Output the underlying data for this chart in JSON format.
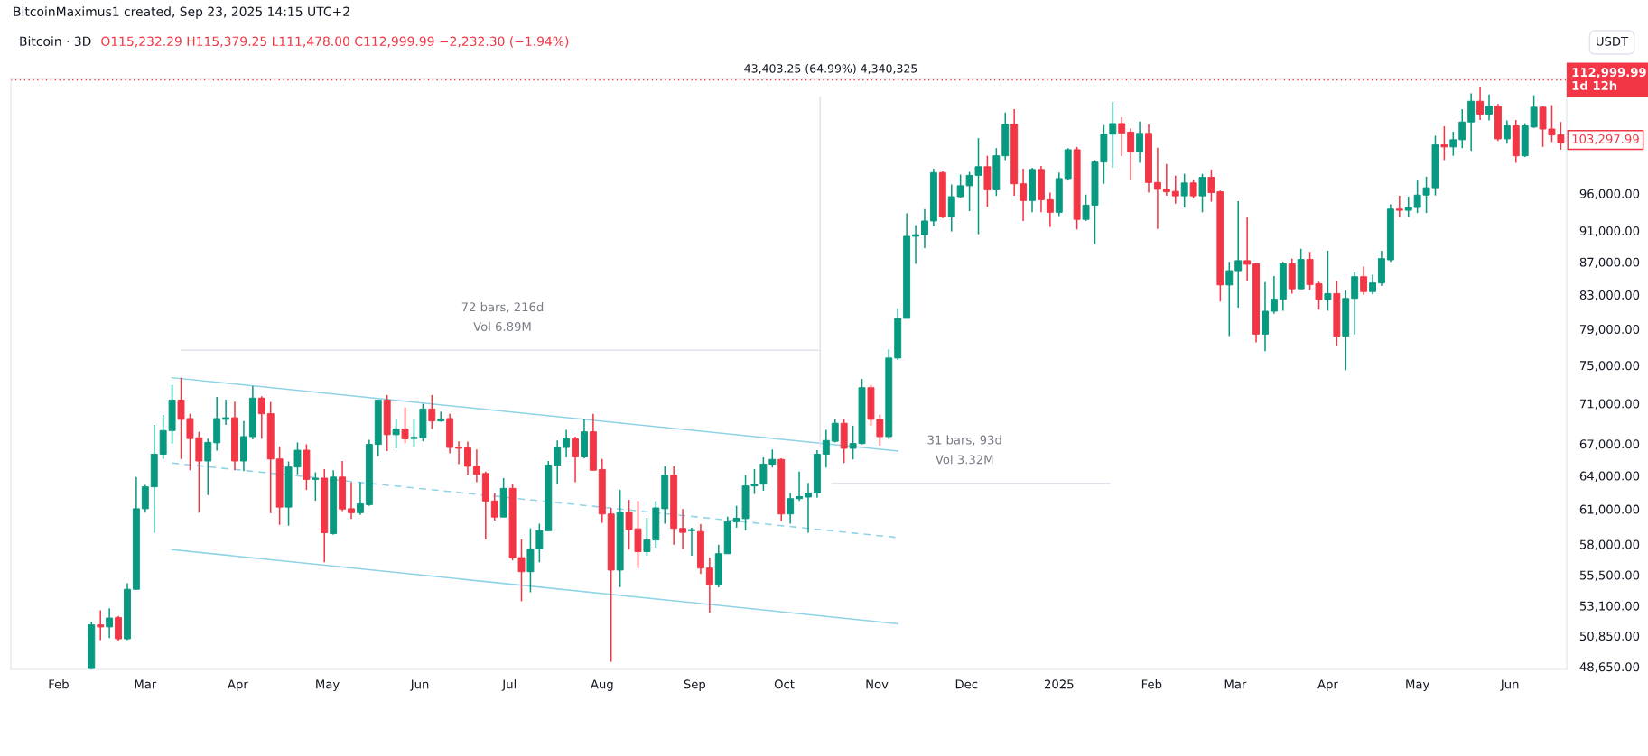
{
  "chart_data": {
    "type": "candlestick",
    "title": "Bitcoin · 3D",
    "subtitle": "O115,232.29 H115,379.25 L111,478.00 C112,999.99 −2,232.30 (−1.94%)",
    "ylabel": "USDT",
    "log": true,
    "x": [
      "2024-02-12",
      "2024-02-15",
      "2024-02-18",
      "2024-02-21",
      "2024-02-24",
      "2024-02-27",
      "2024-03-01",
      "2024-03-04",
      "2024-03-07",
      "2024-03-10",
      "2024-03-13",
      "2024-03-16",
      "2024-03-19",
      "2024-03-22",
      "2024-03-25",
      "2024-03-28",
      "2024-03-31",
      "2024-04-03",
      "2024-04-06",
      "2024-04-09",
      "2024-04-12",
      "2024-04-15",
      "2024-04-18",
      "2024-04-21",
      "2024-04-24",
      "2024-04-27",
      "2024-04-30",
      "2024-05-03",
      "2024-05-06",
      "2024-05-09",
      "2024-05-12",
      "2024-05-15",
      "2024-05-18",
      "2024-05-21",
      "2024-05-24",
      "2024-05-27",
      "2024-05-30",
      "2024-06-02",
      "2024-06-05",
      "2024-06-08",
      "2024-06-11",
      "2024-06-14",
      "2024-06-17",
      "2024-06-20",
      "2024-06-23",
      "2024-06-26",
      "2024-06-29",
      "2024-07-02",
      "2024-07-05",
      "2024-07-08",
      "2024-07-11",
      "2024-07-14",
      "2024-07-17",
      "2024-07-20",
      "2024-07-23",
      "2024-07-26",
      "2024-07-29",
      "2024-08-01",
      "2024-08-04",
      "2024-08-07",
      "2024-08-10",
      "2024-08-13",
      "2024-08-16",
      "2024-08-19",
      "2024-08-22",
      "2024-08-25",
      "2024-08-28",
      "2024-08-31",
      "2024-09-03",
      "2024-09-06",
      "2024-09-09",
      "2024-09-12",
      "2024-09-15",
      "2024-09-18",
      "2024-09-21",
      "2024-09-24",
      "2024-09-27",
      "2024-09-30",
      "2024-10-03",
      "2024-10-06",
      "2024-10-09",
      "2024-10-12",
      "2024-10-15",
      "2024-10-18",
      "2024-10-21",
      "2024-10-24",
      "2024-10-27",
      "2024-10-30",
      "2024-11-02",
      "2024-11-05",
      "2024-11-08",
      "2024-11-11",
      "2024-11-14",
      "2024-11-17",
      "2024-11-20",
      "2024-11-23",
      "2024-11-26",
      "2024-11-29",
      "2024-12-02",
      "2024-12-05",
      "2024-12-08",
      "2024-12-11",
      "2024-12-14",
      "2024-12-17",
      "2024-12-20",
      "2024-12-23",
      "2024-12-26",
      "2024-12-29",
      "2025-01-01",
      "2025-01-04",
      "2025-01-07",
      "2025-01-10",
      "2025-01-13",
      "2025-01-16",
      "2025-01-19",
      "2025-01-22",
      "2025-01-25",
      "2025-01-28",
      "2025-01-31",
      "2025-02-03",
      "2025-02-06",
      "2025-02-09",
      "2025-02-12",
      "2025-02-15",
      "2025-02-18",
      "2025-02-21",
      "2025-02-24",
      "2025-02-27",
      "2025-03-02",
      "2025-03-05",
      "2025-03-08",
      "2025-03-11",
      "2025-03-14",
      "2025-03-17",
      "2025-03-20",
      "2025-03-23",
      "2025-03-26",
      "2025-03-29",
      "2025-04-01",
      "2025-04-04",
      "2025-04-07",
      "2025-04-10",
      "2025-04-13",
      "2025-04-16",
      "2025-04-19",
      "2025-04-22",
      "2025-04-25",
      "2025-04-28",
      "2025-05-01",
      "2025-05-04",
      "2025-05-07",
      "2025-05-10",
      "2025-05-13",
      "2025-05-16",
      "2025-05-19",
      "2025-05-22",
      "2025-05-25",
      "2025-05-28",
      "2025-05-31",
      "2025-06-03",
      "2025-06-06",
      "2025-06-09",
      "2025-06-12",
      "2025-06-15",
      "2025-06-18"
    ],
    "ohlc": [
      [
        48520,
        51900,
        48480,
        51660
      ],
      [
        51660,
        52760,
        50550,
        51510
      ],
      [
        51510,
        52910,
        50690,
        52170
      ],
      [
        52200,
        52320,
        50490,
        50640
      ],
      [
        50640,
        54840,
        50550,
        54370
      ],
      [
        54370,
        63880,
        54340,
        61040
      ],
      [
        61040,
        63170,
        60690,
        62990
      ],
      [
        62990,
        68850,
        58970,
        66010
      ],
      [
        66010,
        69840,
        65560,
        68290
      ],
      [
        68290,
        72920,
        67030,
        71350
      ],
      [
        71350,
        73680,
        65560,
        69400
      ],
      [
        69480,
        69960,
        64510,
        67510
      ],
      [
        67590,
        68170,
        60690,
        65370
      ],
      [
        65370,
        67510,
        62250,
        67140
      ],
      [
        67100,
        71670,
        66350,
        69480
      ],
      [
        69400,
        71390,
        68850,
        69560
      ],
      [
        69560,
        71190,
        64510,
        65370
      ],
      [
        65370,
        69240,
        64430,
        67700
      ],
      [
        67700,
        72800,
        67440,
        71550
      ],
      [
        71550,
        71750,
        67510,
        69960
      ],
      [
        69960,
        71150,
        60650,
        65560
      ],
      [
        65560,
        66760,
        59640,
        61180
      ],
      [
        61180,
        65330,
        59570,
        64810
      ],
      [
        64810,
        67140,
        64130,
        66390
      ],
      [
        66390,
        66950,
        62710,
        63670
      ],
      [
        63670,
        64320,
        61750,
        63780
      ],
      [
        63780,
        64620,
        56520,
        58970
      ],
      [
        58900,
        64510,
        58800,
        63880
      ],
      [
        63880,
        65370,
        60830,
        61010
      ],
      [
        61040,
        63420,
        60140,
        60690
      ],
      [
        60690,
        63420,
        60510,
        61470
      ],
      [
        61400,
        67400,
        61290,
        66950
      ],
      [
        66950,
        71350,
        65820,
        71350
      ],
      [
        71350,
        71870,
        66310,
        67890
      ],
      [
        67890,
        69480,
        66570,
        68450
      ],
      [
        68450,
        70600,
        67060,
        67480
      ],
      [
        67510,
        69480,
        66680,
        67630
      ],
      [
        67590,
        70960,
        67250,
        70440
      ],
      [
        70440,
        71870,
        68450,
        69240
      ],
      [
        69240,
        70160,
        69160,
        69440
      ],
      [
        69480,
        69960,
        66090,
        66650
      ],
      [
        66690,
        67250,
        65070,
        66570
      ],
      [
        66610,
        67210,
        64060,
        64880
      ],
      [
        64880,
        66460,
        63420,
        64130
      ],
      [
        64210,
        64390,
        58400,
        61720
      ],
      [
        61720,
        62430,
        60010,
        60310
      ],
      [
        60310,
        63780,
        60310,
        62850
      ],
      [
        62850,
        63240,
        56680,
        56900
      ],
      [
        56900,
        58400,
        53450,
        55760
      ],
      [
        55760,
        59340,
        54140,
        57620
      ],
      [
        57620,
        59740,
        56520,
        59140
      ],
      [
        59140,
        65370,
        59140,
        64990
      ],
      [
        64990,
        67330,
        63240,
        66650
      ],
      [
        66650,
        68370,
        65710,
        67480
      ],
      [
        67480,
        67700,
        63420,
        65750
      ],
      [
        65750,
        69400,
        65630,
        68170
      ],
      [
        68170,
        69960,
        64510,
        64510
      ],
      [
        64580,
        65560,
        59810,
        60580
      ],
      [
        60580,
        61110,
        48990,
        55890
      ],
      [
        55890,
        62710,
        54530,
        60760
      ],
      [
        60760,
        61820,
        57560,
        59240
      ],
      [
        59300,
        61720,
        56050,
        57390
      ],
      [
        57390,
        60240,
        57060,
        58360
      ],
      [
        58360,
        61720,
        57720,
        61110
      ],
      [
        61040,
        64880,
        59740,
        64060
      ],
      [
        64060,
        64880,
        57960,
        59340
      ],
      [
        59340,
        61010,
        57620,
        59000
      ],
      [
        59140,
        59400,
        57060,
        59240
      ],
      [
        59070,
        59710,
        55570,
        56050
      ],
      [
        56050,
        56900,
        52560,
        54750
      ],
      [
        54750,
        57960,
        54530,
        57220
      ],
      [
        57220,
        60350,
        57220,
        59910
      ],
      [
        59910,
        61290,
        59400,
        60210
      ],
      [
        60180,
        64060,
        59170,
        63070
      ],
      [
        63070,
        64620,
        62350,
        63240
      ],
      [
        63240,
        65710,
        62640,
        65070
      ],
      [
        65070,
        66460,
        64770,
        65520
      ],
      [
        65520,
        65630,
        59980,
        60580
      ],
      [
        60580,
        62430,
        59740,
        61930
      ],
      [
        61930,
        64390,
        61720,
        62110
      ],
      [
        62070,
        63350,
        58970,
        62430
      ],
      [
        62430,
        66390,
        62000,
        66010
      ],
      [
        66010,
        68370,
        64770,
        67330
      ],
      [
        67250,
        69400,
        67140,
        69010
      ],
      [
        69010,
        69400,
        65180,
        66570
      ],
      [
        66570,
        68770,
        65520,
        67030
      ],
      [
        67030,
        73550,
        66950,
        72630
      ],
      [
        72630,
        72920,
        68770,
        69400
      ],
      [
        69400,
        69880,
        66840,
        67700
      ],
      [
        67700,
        76750,
        67440,
        75790
      ],
      [
        75790,
        81390,
        75570,
        80230
      ],
      [
        80230,
        93290,
        80230,
        90270
      ],
      [
        90270,
        91750,
        86770,
        90480
      ],
      [
        90480,
        93870,
        88770,
        92280
      ],
      [
        92280,
        99480,
        91590,
        98920
      ],
      [
        98920,
        99090,
        92650,
        92810
      ],
      [
        92810,
        97240,
        90900,
        95560
      ],
      [
        95560,
        98640,
        95400,
        97070
      ],
      [
        97070,
        99030,
        93600,
        98530
      ],
      [
        98530,
        103950,
        90540,
        99760
      ],
      [
        99760,
        101340,
        94180,
        96510
      ],
      [
        96510,
        102460,
        95670,
        101340
      ],
      [
        101340,
        107840,
        100710,
        106020
      ],
      [
        106020,
        108350,
        95670,
        97350
      ],
      [
        97350,
        99480,
        92280,
        95030
      ],
      [
        95030,
        99590,
        93440,
        99370
      ],
      [
        99370,
        99870,
        93440,
        95140
      ],
      [
        95140,
        96120,
        91490,
        93440
      ],
      [
        93440,
        98920,
        92920,
        98080
      ],
      [
        98080,
        102460,
        97800,
        102230
      ],
      [
        102230,
        102640,
        91170,
        92490
      ],
      [
        92490,
        95840,
        92280,
        94400
      ],
      [
        94400,
        100710,
        89270,
        100430
      ],
      [
        100430,
        105900,
        97350,
        104540
      ],
      [
        104540,
        109480,
        99590,
        106140
      ],
      [
        106140,
        107090,
        101280,
        104720
      ],
      [
        104840,
        105430,
        97800,
        101930
      ],
      [
        101930,
        106440,
        100320,
        104660
      ],
      [
        104660,
        106020,
        96120,
        97520
      ],
      [
        97520,
        102520,
        91220,
        96570
      ],
      [
        96570,
        100150,
        95670,
        96230
      ],
      [
        96290,
        98470,
        94610,
        95670
      ],
      [
        95670,
        98750,
        94080,
        97460
      ],
      [
        97460,
        97910,
        95300,
        95670
      ],
      [
        95670,
        98750,
        93440,
        98250
      ],
      [
        98250,
        99370,
        94870,
        96120
      ],
      [
        96230,
        96400,
        82200,
        84180
      ],
      [
        84180,
        87020,
        78220,
        85920
      ],
      [
        85920,
        94930,
        81490,
        87170
      ],
      [
        87170,
        92810,
        84660,
        86720
      ],
      [
        86770,
        86870,
        77510,
        78440
      ],
      [
        78440,
        84510,
        76530,
        81060
      ],
      [
        81060,
        85270,
        80780,
        82480
      ],
      [
        82480,
        87020,
        81110,
        86770
      ],
      [
        86770,
        87420,
        83140,
        83710
      ],
      [
        83710,
        88670,
        83710,
        87320
      ],
      [
        87320,
        88270,
        83570,
        84230
      ],
      [
        84320,
        84560,
        81250,
        82430
      ],
      [
        82430,
        88420,
        81110,
        83140
      ],
      [
        83140,
        84660,
        77110,
        78220
      ],
      [
        78220,
        83520,
        74480,
        82570
      ],
      [
        82570,
        85770,
        78400,
        85180
      ],
      [
        85180,
        86420,
        83000,
        83380
      ],
      [
        83380,
        85420,
        83050,
        84420
      ],
      [
        84420,
        88420,
        84090,
        87420
      ],
      [
        87270,
        94500,
        87020,
        93870
      ],
      [
        93870,
        95670,
        92810,
        93710
      ],
      [
        93710,
        95560,
        92810,
        94080
      ],
      [
        94080,
        97800,
        93340,
        95780
      ],
      [
        95780,
        98360,
        93340,
        96790
      ],
      [
        96790,
        104300,
        95730,
        102940
      ],
      [
        102940,
        105730,
        100710,
        102640
      ],
      [
        102640,
        104900,
        101340,
        103710
      ],
      [
        103710,
        108350,
        102460,
        106380
      ],
      [
        106380,
        110860,
        102050,
        109600
      ],
      [
        109600,
        111930,
        106670,
        107590
      ],
      [
        107590,
        110670,
        106620,
        108850
      ],
      [
        108850,
        109160,
        103530,
        103830
      ],
      [
        103830,
        106620,
        103120,
        105790
      ],
      [
        105790,
        106670,
        100320,
        101340
      ],
      [
        101340,
        106200,
        101160,
        105790
      ],
      [
        105610,
        110540,
        105490,
        108660
      ],
      [
        108660,
        108790,
        102640,
        105310
      ],
      [
        105310,
        108980,
        103360,
        104420
      ],
      [
        104420,
        106380,
        102230,
        103240
      ]
    ],
    "series": [
      {
        "type": "line",
        "color": "#8fd3e6",
        "line_style": "solid",
        "x": [
          "2024-03-10",
          "2024-11-08"
        ],
        "values": [
          73680,
          66310
        ]
      },
      {
        "type": "line",
        "color": "#8fd3e6",
        "line_style": "dashed",
        "x": [
          "2024-03-10",
          "2024-11-08"
        ],
        "values": [
          65180,
          58560
        ]
      },
      {
        "type": "line",
        "color": "#8fd3e6",
        "line_style": "solid",
        "x": [
          "2024-03-10",
          "2024-11-08"
        ],
        "values": [
          57560,
          51750
        ]
      },
      {
        "type": "line",
        "color": "#e0e3eb",
        "line_style": "solid",
        "x": [
          "2024-03-13",
          "2024-10-13"
        ],
        "values": [
          76640,
          76640
        ]
      },
      {
        "type": "line",
        "color": "#e0e3eb",
        "line_style": "solid",
        "x": [
          "2024-10-13",
          "2024-10-13"
        ],
        "values": [
          66790,
          110190
        ]
      },
      {
        "type": "line",
        "color": "#e0e3eb",
        "line_style": "solid",
        "x": [
          "2024-10-17",
          "2025-01-18"
        ],
        "values": [
          63300,
          63300
        ]
      }
    ],
    "xlim": [
      "2024-01-16",
      "2025-06-20"
    ],
    "xticks": [
      {
        "value": "2024-02-01",
        "label": "Feb"
      },
      {
        "value": "2024-03-01",
        "label": "Mar"
      },
      {
        "value": "2024-04-01",
        "label": "Apr"
      },
      {
        "value": "2024-05-01",
        "label": "May"
      },
      {
        "value": "2024-06-01",
        "label": "Jun"
      },
      {
        "value": "2024-07-01",
        "label": "Jul"
      },
      {
        "value": "2024-08-01",
        "label": "Aug"
      },
      {
        "value": "2024-09-01",
        "label": "Sep"
      },
      {
        "value": "2024-10-01",
        "label": "Oct"
      },
      {
        "value": "2024-11-01",
        "label": "Nov"
      },
      {
        "value": "2024-12-01",
        "label": "Dec"
      },
      {
        "value": "2025-01-01",
        "label": "2025"
      },
      {
        "value": "2025-02-01",
        "label": "Feb"
      },
      {
        "value": "2025-03-01",
        "label": "Mar"
      },
      {
        "value": "2025-04-01",
        "label": "Apr"
      },
      {
        "value": "2025-05-01",
        "label": "May"
      },
      {
        "value": "2025-06-01",
        "label": "Jun"
      }
    ],
    "ylim": [
      48460,
      113240
    ],
    "yticks": [
      {
        "value": 48650,
        "label": "48,650.00"
      },
      {
        "value": 50850,
        "label": "50,850.00"
      },
      {
        "value": 53100,
        "label": "53,100.00"
      },
      {
        "value": 55500,
        "label": "55,500.00"
      },
      {
        "value": 58000,
        "label": "58,000.00"
      },
      {
        "value": 61000,
        "label": "61,000.00"
      },
      {
        "value": 64000,
        "label": "64,000.00"
      },
      {
        "value": 67000,
        "label": "67,000.00"
      },
      {
        "value": 71000,
        "label": "71,000.00"
      },
      {
        "value": 75000,
        "label": "75,000.00"
      },
      {
        "value": 79000,
        "label": "79,000.00"
      },
      {
        "value": 83000,
        "label": "83,000.00"
      },
      {
        "value": 87000,
        "label": "87,000.00"
      },
      {
        "value": 91000,
        "label": "91,000.00"
      },
      {
        "value": 96000,
        "label": "96,000.00"
      }
    ],
    "ref_lines": [
      {
        "axis": "y",
        "value": 112999.99,
        "label": "112,999.99\n1d 12h",
        "color": "#f23645",
        "line_style": "dotted"
      }
    ],
    "annotations": [
      "BitcoinMaximus1 created, Sep 23, 2025 14:15 UTC+2",
      "43,403.25 (64.99%) 4,340,325",
      "72 bars, 216d\nVol 6.89M",
      "31 bars, 93d\nVol 3.32M",
      "103,297.99"
    ]
  }
}
